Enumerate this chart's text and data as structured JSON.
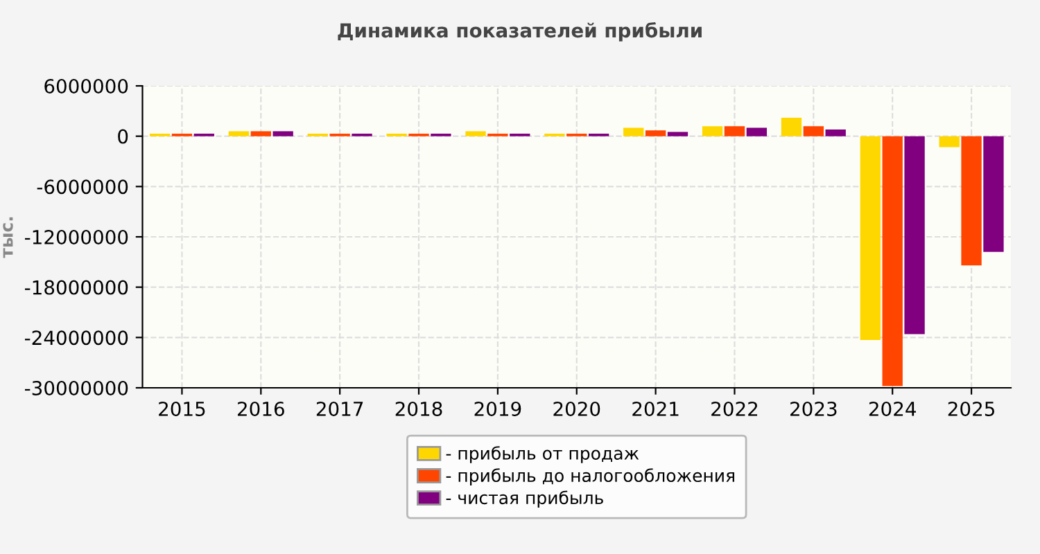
{
  "chart_data": {
    "type": "bar",
    "title": "Динамика показателей прибыли",
    "ylabel": "тыс.",
    "categories": [
      "2015",
      "2016",
      "2017",
      "2018",
      "2019",
      "2020",
      "2021",
      "2022",
      "2023",
      "2024",
      "2025"
    ],
    "series": [
      {
        "name": "- прибыль от продаж",
        "color": "#ffd700",
        "values": [
          300000,
          600000,
          300000,
          300000,
          600000,
          300000,
          1000000,
          1200000,
          2200000,
          -24300000,
          -1300000
        ]
      },
      {
        "name": "- прибыль до налогообложения",
        "color": "#ff4500",
        "values": [
          300000,
          600000,
          300000,
          300000,
          300000,
          300000,
          700000,
          1200000,
          1200000,
          -29800000,
          -15400000
        ]
      },
      {
        "name": "- чистая прибыль",
        "color": "#800080",
        "values": [
          300000,
          600000,
          300000,
          300000,
          300000,
          300000,
          500000,
          1000000,
          800000,
          -23600000,
          -13800000
        ]
      }
    ],
    "ylim": [
      -30000000,
      6000000
    ],
    "yticks": [
      -30000000,
      -24000000,
      -18000000,
      -12000000,
      -6000000,
      0,
      6000000
    ],
    "grid": true,
    "legend": "bottom"
  }
}
